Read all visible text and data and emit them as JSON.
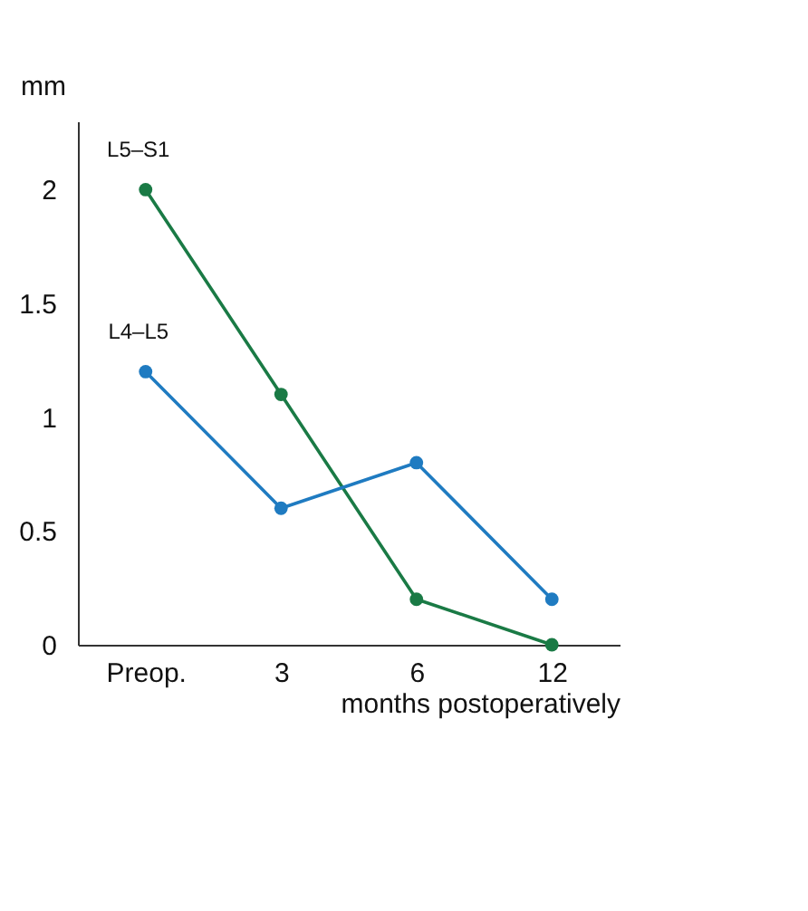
{
  "chart_data": {
    "type": "line",
    "ylabel": "mm",
    "xlabel": "months postoperatively",
    "categories": [
      "Preop.",
      "3",
      "6",
      "12"
    ],
    "series": [
      {
        "name": "L5–S1",
        "color": "#1a7a45",
        "values": [
          2.0,
          1.1,
          0.2,
          0.0
        ]
      },
      {
        "name": "L4–L5",
        "color": "#1f7bc1",
        "values": [
          1.2,
          0.6,
          0.8,
          0.2
        ]
      }
    ],
    "ylim": [
      0,
      2.3
    ],
    "yticks": [
      0,
      {
        "value": 0.5,
        "label": "0.5"
      },
      1,
      {
        "value": 1.5,
        "label": "1.5"
      },
      2
    ],
    "grid": false,
    "legend": false,
    "marker": "circle",
    "line_style": "solid"
  }
}
